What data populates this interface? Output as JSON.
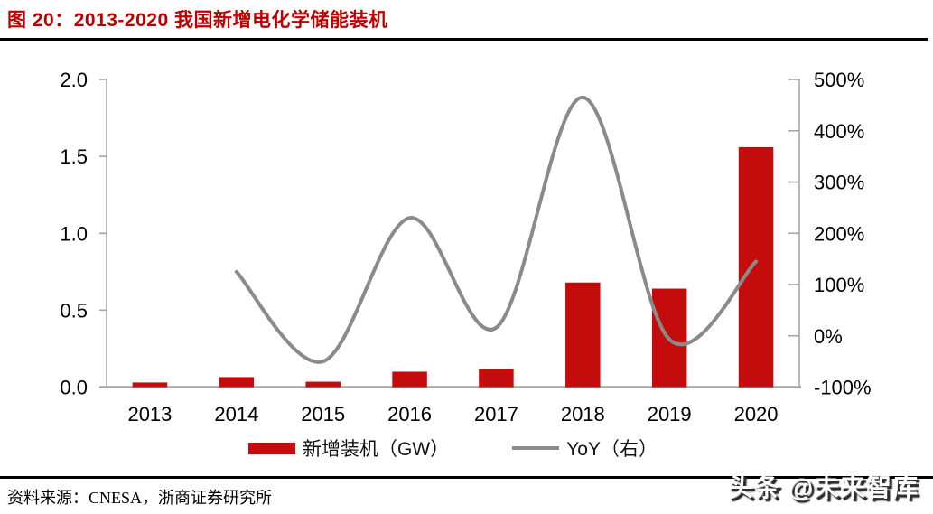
{
  "page": {
    "title": "图 20：2013-2020 我国新增电化学储能装机",
    "source_note": "资料来源：CNESA，浙商证券研究所",
    "watermark": "头条 @未来智库"
  },
  "colors": {
    "title_red": "#c00000",
    "bar_red": "#c40c0c",
    "line_gray": "#8a8a8a",
    "axis_gray": "#a6a6a6",
    "label_black": "#000000",
    "rule_black": "#000000"
  },
  "chart_data": {
    "type": "bar",
    "subtype": "combo-bar-line-dual-axis",
    "title": "图 20：2013-2020 我国新增电化学储能装机",
    "categories": [
      "2013",
      "2014",
      "2015",
      "2016",
      "2017",
      "2018",
      "2019",
      "2020"
    ],
    "series": [
      {
        "name": "新增装机（GW）",
        "type": "bar",
        "axis": "left",
        "values": [
          0.03,
          0.065,
          0.035,
          0.1,
          0.12,
          0.68,
          0.64,
          1.56
        ]
      },
      {
        "name": "YoY（右）",
        "type": "line",
        "axis": "right",
        "smooth": true,
        "values": [
          null,
          125,
          -50,
          230,
          16,
          465,
          -7,
          145
        ]
      }
    ],
    "left_axis": {
      "min": 0.0,
      "max": 2.0,
      "tick_labels": [
        "0.0",
        "0.5",
        "1.0",
        "1.5",
        "2.0"
      ]
    },
    "right_axis": {
      "min": -100,
      "max": 500,
      "tick_labels": [
        "-100%",
        "0%",
        "100%",
        "200%",
        "300%",
        "400%",
        "500%"
      ]
    },
    "grid": false,
    "legend_position": "bottom"
  }
}
